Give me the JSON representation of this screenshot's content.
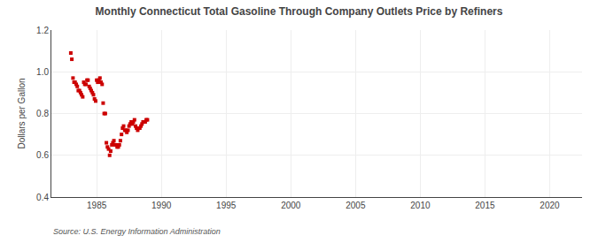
{
  "chart_data": {
    "type": "scatter",
    "title": "Monthly Connecticut Total Gasoline Through Company Outlets Price by Refiners",
    "ylabel": "Dollars per Gallon",
    "annotation": "Source: U.S. Energy Information Administration",
    "x": [
      1983.0,
      1983.08,
      1983.17,
      1983.25,
      1983.33,
      1983.42,
      1983.5,
      1983.58,
      1983.67,
      1983.75,
      1983.83,
      1983.92,
      1984.0,
      1984.08,
      1984.17,
      1984.25,
      1984.33,
      1984.42,
      1984.5,
      1984.58,
      1984.67,
      1984.75,
      1984.83,
      1984.92,
      1985.0,
      1985.08,
      1985.17,
      1985.25,
      1985.33,
      1985.42,
      1985.5,
      1985.58,
      1985.67,
      1985.75,
      1985.83,
      1985.92,
      1986.0,
      1986.08,
      1986.17,
      1986.25,
      1986.33,
      1986.42,
      1986.5,
      1986.58,
      1986.67,
      1986.75,
      1986.83,
      1986.92,
      1987.0,
      1987.08,
      1987.17,
      1987.25,
      1987.33,
      1987.42,
      1987.5,
      1987.58,
      1987.67,
      1987.75,
      1987.83,
      1987.92,
      1988.0,
      1988.08,
      1988.17,
      1988.25,
      1988.33,
      1988.42,
      1988.5,
      1988.58,
      1988.67,
      1988.75,
      1988.83,
      1988.92
    ],
    "values": [
      1.09,
      1.06,
      0.97,
      0.95,
      0.95,
      0.94,
      0.93,
      0.91,
      0.91,
      0.9,
      0.89,
      0.88,
      0.95,
      0.94,
      0.94,
      0.96,
      0.96,
      0.93,
      0.92,
      0.91,
      0.9,
      0.89,
      0.87,
      0.86,
      0.96,
      0.95,
      0.96,
      0.97,
      0.95,
      0.94,
      0.85,
      0.8,
      0.8,
      0.66,
      0.64,
      0.63,
      0.6,
      0.62,
      0.65,
      0.66,
      0.67,
      0.65,
      0.65,
      0.64,
      0.64,
      0.65,
      0.67,
      0.7,
      0.73,
      0.74,
      0.72,
      0.72,
      0.71,
      0.72,
      0.74,
      0.75,
      0.76,
      0.75,
      0.76,
      0.77,
      0.74,
      0.73,
      0.72,
      0.73,
      0.73,
      0.74,
      0.75,
      0.76,
      0.76,
      0.76,
      0.77,
      0.77
    ],
    "color": "#cc0000",
    "marker": "square",
    "xlim": [
      1981.5,
      2022.5
    ],
    "ylim": [
      0.4,
      1.2
    ],
    "xticks": [
      1985,
      1990,
      1995,
      2000,
      2005,
      2010,
      2015,
      2020
    ],
    "yticks": [
      0.4,
      0.6,
      0.8,
      {
        "value": 1.0,
        "label": "1.0"
      },
      1.2
    ],
    "grid": true
  }
}
